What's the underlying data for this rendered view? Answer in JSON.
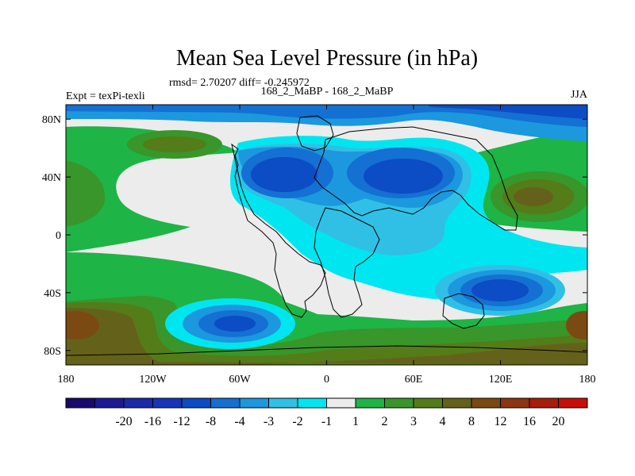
{
  "chart_data": {
    "type": "heatmap",
    "title": "Mean Sea Level Pressure (in hPa)",
    "stats_label": "rmsd= 2.70207 diff= -0.245972",
    "left_label": "Expt = texPi-texli",
    "center_label": "168_2_MaBP - 168_2_MaBP",
    "right_label": "JJA",
    "x_ticks": [
      {
        "value": -180,
        "label": "180"
      },
      {
        "value": -120,
        "label": "120W"
      },
      {
        "value": -60,
        "label": "60W"
      },
      {
        "value": 0,
        "label": "0"
      },
      {
        "value": 60,
        "label": "60E"
      },
      {
        "value": 120,
        "label": "120E"
      },
      {
        "value": 180,
        "label": "180"
      }
    ],
    "y_ticks": [
      {
        "value": 80,
        "label": "80N"
      },
      {
        "value": 40,
        "label": "40N"
      },
      {
        "value": 0,
        "label": "0"
      },
      {
        "value": -40,
        "label": "40S"
      },
      {
        "value": -80,
        "label": "80S"
      }
    ],
    "xlim": [
      -180,
      180
    ],
    "ylim": [
      -90,
      90
    ],
    "colorbar": {
      "colors": [
        "#1a0a6e",
        "#1d1a96",
        "#1a2aa8",
        "#1536b8",
        "#0c4cc4",
        "#1470d2",
        "#1c98de",
        "#30c0e6",
        "#00e6f0",
        "#ececec",
        "#1eb446",
        "#38962a",
        "#547c18",
        "#64621a",
        "#7a4a12",
        "#8e3410",
        "#a81c0a",
        "#c80e04"
      ],
      "level_labels": [
        "-20",
        "-16",
        "-12",
        "-8",
        "-4",
        "-3",
        "-2",
        "-1",
        "1",
        "2",
        "3",
        "4",
        "8",
        "12",
        "16",
        "20"
      ],
      "label_boundaries": [
        1,
        2,
        3,
        4,
        5,
        6,
        7,
        8,
        9,
        10,
        11,
        12,
        13,
        14,
        15,
        16
      ]
    },
    "anomaly_field": {
      "background_level": "-1 to 1",
      "features": [
        {
          "lon": -95,
          "lat": 62,
          "lon_radius": 30,
          "lat_radius": 10,
          "level": "3 to 4"
        },
        {
          "lon": -175,
          "lat": 15,
          "lon_radius": 20,
          "lat_radius": 30,
          "level": "3 to 4"
        },
        {
          "lon": 145,
          "lat": 30,
          "lon_radius": 35,
          "lat_radius": 20,
          "level": "4 to 8"
        },
        {
          "lon": -60,
          "lat": -62,
          "lon_radius": 30,
          "lat_radius": 12,
          "level": "-8 to -4"
        },
        {
          "lon": 100,
          "lat": -42,
          "lon_radius": 30,
          "lat_radius": 12,
          "level": "-8 to -4"
        },
        {
          "lon": 175,
          "lat": -68,
          "lon_radius": 25,
          "lat_radius": 12,
          "level": "8 to 12"
        },
        {
          "lon": -178,
          "lat": -68,
          "lon_radius": 20,
          "lat_radius": 12,
          "level": "8 to 12"
        },
        {
          "lon": -25,
          "lat": 45,
          "lon_radius": 25,
          "lat_radius": 15,
          "level": "-8 to -4"
        },
        {
          "lon": 65,
          "lat": 45,
          "lon_radius": 25,
          "lat_radius": 15,
          "level": "-8 to -4"
        }
      ]
    }
  }
}
